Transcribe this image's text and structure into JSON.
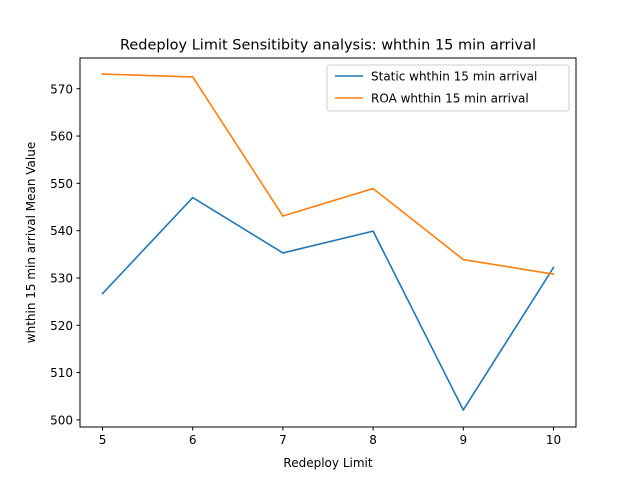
{
  "chart_data": {
    "type": "line",
    "title": "Redeploy Limit Sensitibity analysis: whthin 15 min arrival",
    "xlabel": "Redeploy Limit",
    "ylabel": "whthin 15 min arrival Mean Value",
    "x": [
      5,
      6,
      7,
      8,
      9,
      10
    ],
    "xlim": [
      4.75,
      10.25
    ],
    "ylim": [
      498.5,
      576.5
    ],
    "xticks": [
      "5",
      "6",
      "7",
      "8",
      "9",
      "10"
    ],
    "yticks": [
      "500",
      "510",
      "520",
      "530",
      "540",
      "550",
      "560",
      "570"
    ],
    "grid": false,
    "legend_position": "upper right",
    "series": [
      {
        "name": "Static whthin 15 min arrival",
        "color": "#1f77b4",
        "values": [
          526.7,
          547.0,
          535.3,
          539.9,
          502.1,
          532.2
        ]
      },
      {
        "name": "ROA whthin 15 min arrival",
        "color": "#ff7f0e",
        "values": [
          573.1,
          572.5,
          543.1,
          548.9,
          533.9,
          530.8
        ]
      }
    ]
  }
}
